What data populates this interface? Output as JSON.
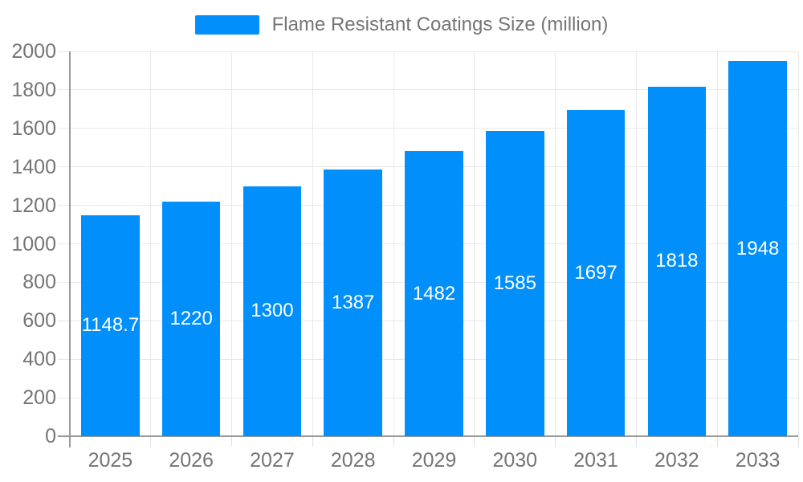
{
  "legend": {
    "label": "Flame Resistant Coatings Size (million)"
  },
  "colors": {
    "bar": "#008FFB",
    "bar_label": "#ffffff",
    "axis_text": "#757575",
    "grid": "#e8e8e8",
    "axis_line": "#9a9a9a",
    "background": "#ffffff"
  },
  "chart_data": {
    "type": "bar",
    "title": "Flame Resistant Coatings Size (million)",
    "series_name": "Flame Resistant Coatings Size (million)",
    "categories": [
      "2025",
      "2026",
      "2027",
      "2028",
      "2029",
      "2030",
      "2031",
      "2032",
      "2033"
    ],
    "values": [
      1148.7,
      1220,
      1300,
      1387,
      1482,
      1585,
      1697,
      1818,
      1948
    ],
    "bar_labels": [
      "1148.7",
      "1220",
      "1300",
      "1387",
      "1482",
      "1585",
      "1697",
      "1818",
      "1948"
    ],
    "xlabel": "",
    "ylabel": "",
    "ylim": [
      0,
      2000
    ],
    "ytick_step": 200,
    "yticks": [
      0,
      200,
      400,
      600,
      800,
      1000,
      1200,
      1400,
      1600,
      1800,
      2000
    ],
    "grid": true,
    "legend_position": "top",
    "bar_color": "#008FFB",
    "label_position": "middle-inside"
  }
}
